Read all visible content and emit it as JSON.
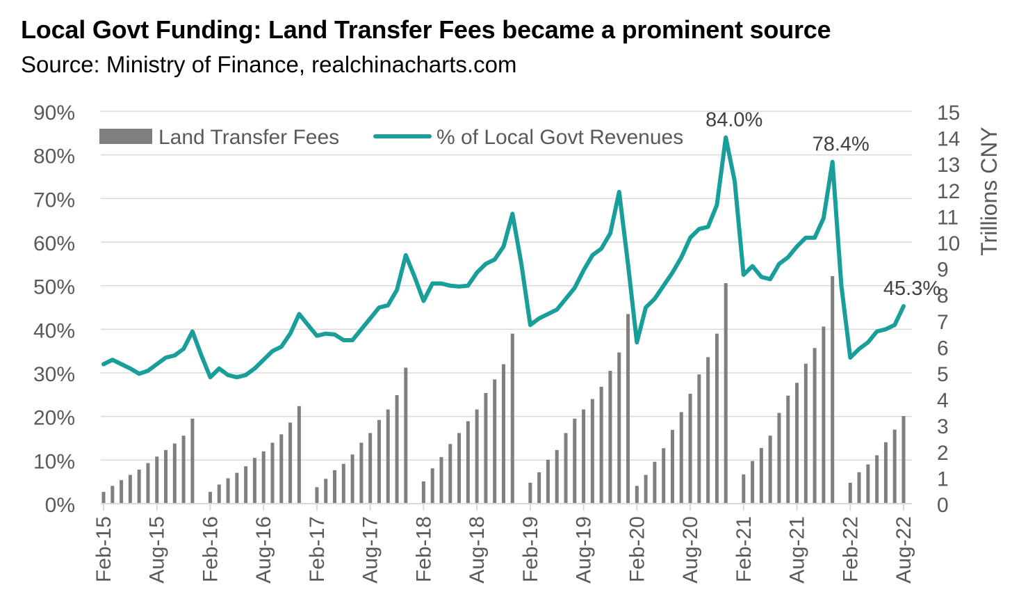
{
  "title": "Local Govt Funding: Land Transfer Fees became a prominent source",
  "subtitle": "Source: Ministry of Finance, realchinacharts.com",
  "colors": {
    "bars": "#7f7f7f",
    "line": "#1a9e9a",
    "grid": "#d9d9d9",
    "axis_text": "#595959"
  },
  "chart_data": {
    "type": "bar",
    "combo": "bar-line",
    "grid": true,
    "legend_position": "top-left",
    "x_ticks": [
      "Feb-15",
      "Aug-15",
      "Feb-16",
      "Aug-16",
      "Feb-17",
      "Aug-17",
      "Feb-18",
      "Aug-18",
      "Feb-19",
      "Aug-19",
      "Feb-20",
      "Aug-20",
      "Feb-21",
      "Aug-21",
      "Feb-22",
      "Aug-22"
    ],
    "y_left": {
      "ticks": [
        "0%",
        "10%",
        "20%",
        "30%",
        "40%",
        "50%",
        "60%",
        "70%",
        "80%",
        "90%"
      ],
      "range": [
        0,
        90
      ],
      "label": ""
    },
    "y_right": {
      "ticks": [
        "0",
        "1",
        "2",
        "3",
        "4",
        "5",
        "6",
        "7",
        "8",
        "9",
        "10",
        "11",
        "12",
        "13",
        "14",
        "15"
      ],
      "range": [
        0,
        15
      ],
      "label": "Trillions CNY"
    },
    "series": [
      {
        "name": "Land Transfer Fees",
        "type": "bar",
        "axis": "right",
        "start": "Feb-15",
        "values": [
          0.45,
          0.68,
          0.9,
          1.1,
          1.3,
          1.55,
          1.8,
          2.05,
          2.3,
          2.6,
          3.25,
          null,
          0.45,
          0.73,
          0.97,
          1.18,
          1.43,
          1.75,
          2.0,
          2.33,
          2.65,
          3.1,
          3.73,
          null,
          0.63,
          0.95,
          1.28,
          1.52,
          1.88,
          2.33,
          2.7,
          3.2,
          3.6,
          4.15,
          5.2,
          null,
          0.85,
          1.35,
          1.78,
          2.28,
          2.7,
          3.15,
          3.6,
          4.23,
          4.75,
          5.33,
          6.5,
          null,
          0.8,
          1.2,
          1.68,
          2.05,
          2.7,
          3.25,
          3.6,
          4.0,
          4.47,
          5.08,
          5.78,
          7.25,
          0.68,
          1.1,
          1.6,
          2.12,
          2.82,
          3.5,
          4.2,
          4.94,
          5.6,
          6.5,
          8.43,
          null,
          1.12,
          1.63,
          2.13,
          2.6,
          3.47,
          4.13,
          4.62,
          5.35,
          5.95,
          6.77,
          8.7,
          null,
          0.8,
          1.2,
          1.5,
          1.85,
          2.35,
          2.83,
          3.35
        ]
      },
      {
        "name": "% of Local Govt Revenues",
        "type": "line",
        "axis": "left",
        "start": "Feb-15",
        "values": [
          32.0,
          33.0,
          32.0,
          31.0,
          29.8,
          30.5,
          32.0,
          33.5,
          34.0,
          35.5,
          39.5,
          34.0,
          29.0,
          31.0,
          29.5,
          29.0,
          29.5,
          31.0,
          33.0,
          35.0,
          36.0,
          39.0,
          43.5,
          41.0,
          38.5,
          39.0,
          38.8,
          37.5,
          37.5,
          40.0,
          42.5,
          45.0,
          45.5,
          49.0,
          57.0,
          52.0,
          46.5,
          50.5,
          50.5,
          50.0,
          49.8,
          50.0,
          53.0,
          55.0,
          56.0,
          59.0,
          66.5,
          55.0,
          41.0,
          42.5,
          43.5,
          44.5,
          47.0,
          49.5,
          53.5,
          57.0,
          58.5,
          62.0,
          71.5,
          55.0,
          37.0,
          45.0,
          47.0,
          50.0,
          53.0,
          56.5,
          61.0,
          63.0,
          63.5,
          68.5,
          84.0,
          74.0,
          52.5,
          54.5,
          52.0,
          51.5,
          55.0,
          56.5,
          59.0,
          61.0,
          61.0,
          65.5,
          78.4,
          50.0,
          33.5,
          35.5,
          37.0,
          39.5,
          40.0,
          41.0,
          45.3
        ]
      }
    ],
    "annotations": [
      {
        "text": "84.0%",
        "period": "Dec-20"
      },
      {
        "text": "78.4%",
        "period": "Dec-21"
      },
      {
        "text": "45.3%",
        "period": "Aug-22"
      }
    ]
  }
}
